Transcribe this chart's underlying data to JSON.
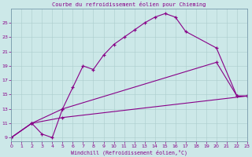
{
  "title": "Courbe du refroidissement éolien pour Chieming",
  "xlabel": "Windchill (Refroidissement éolien,°C)",
  "bg_color": "#cce8e8",
  "line_color": "#880088",
  "xlim": [
    0,
    23
  ],
  "ylim": [
    8.5,
    27
  ],
  "yticks": [
    9,
    11,
    13,
    15,
    17,
    19,
    21,
    23,
    25
  ],
  "xticks": [
    0,
    1,
    2,
    3,
    4,
    5,
    6,
    7,
    8,
    9,
    10,
    11,
    12,
    13,
    14,
    15,
    16,
    17,
    18,
    19,
    20,
    21,
    22,
    23
  ],
  "line1_x": [
    0,
    2,
    3,
    4,
    5,
    6,
    7,
    8,
    9,
    10,
    11,
    12,
    13,
    14,
    15,
    16,
    17,
    20,
    22,
    23
  ],
  "line1_y": [
    9,
    11,
    9.5,
    9,
    13,
    16,
    19,
    18.5,
    20.5,
    22,
    23,
    24,
    25,
    25.8,
    26.3,
    25.8,
    23.8,
    21.5,
    14.8,
    14.8
  ],
  "line2_x": [
    0,
    2,
    5,
    20,
    22,
    23
  ],
  "line2_y": [
    9,
    11,
    13,
    19.5,
    14.8,
    14.8
  ],
  "line3_x": [
    0,
    2,
    5,
    23
  ],
  "line3_y": [
    9,
    11,
    11.8,
    14.8
  ]
}
